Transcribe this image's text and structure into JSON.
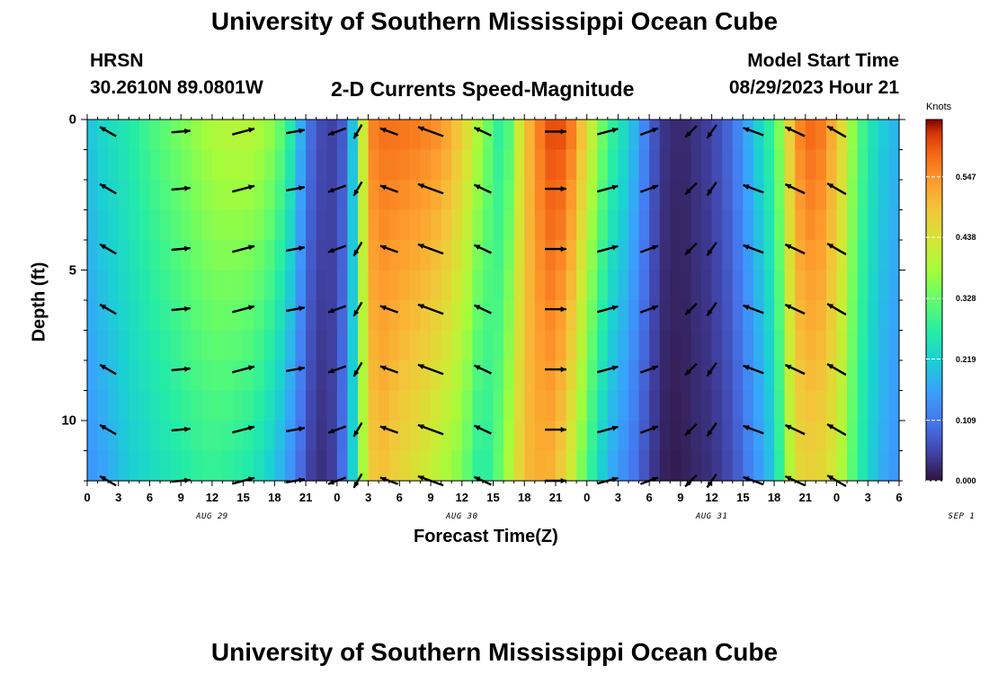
{
  "page": {
    "title": "University of Southern Mississippi Ocean Cube",
    "title_bottom": "University of Southern Mississippi Ocean Cube",
    "station": "HRSN",
    "coords": "30.2610N  89.0801W",
    "plot_title": "2-D Currents Speed-Magnitude",
    "model_start_label": "Model Start Time",
    "model_start_value": "08/29/2023 Hour 21"
  },
  "chart_data": {
    "type": "heatmap",
    "title": "2-D Currents Speed-Magnitude",
    "xlabel": "Forecast Time(Z)",
    "ylabel": "Depth (ft)",
    "x_tick_labels": [
      "0",
      "3",
      "6",
      "9",
      "12",
      "15",
      "18",
      "21",
      "0",
      "3",
      "6",
      "9",
      "12",
      "15",
      "18",
      "21",
      "0",
      "3",
      "6",
      "9",
      "12",
      "15",
      "18",
      "21",
      "0",
      "3",
      "6"
    ],
    "day_labels": [
      {
        "label": "AUG 29",
        "hour": 12
      },
      {
        "label": "AUG 30",
        "hour": 36
      },
      {
        "label": "AUG 31",
        "hour": 60
      },
      {
        "label": "SEP 1",
        "hour": 84
      }
    ],
    "xlim": [
      0,
      78
    ],
    "ylim": [
      0,
      12
    ],
    "y_ticks": [
      0,
      5,
      10
    ],
    "colorbar": {
      "title": "Knots",
      "range": [
        0,
        0.65
      ],
      "ticks": [
        "0.000",
        "0.109",
        "0.219",
        "0.328",
        "0.438",
        "0.547"
      ],
      "tick_values": [
        0,
        0.109,
        0.219,
        0.328,
        0.438,
        0.547
      ]
    },
    "hours": [
      0,
      2,
      4,
      6,
      8,
      10,
      12,
      14,
      16,
      18,
      20,
      21,
      22,
      23,
      24,
      25,
      26,
      27,
      28,
      29,
      30,
      32,
      34,
      36,
      38,
      40,
      42,
      44,
      45,
      46,
      47,
      48,
      50,
      52,
      54,
      55,
      56,
      57,
      58,
      60,
      62,
      64,
      66,
      67,
      68,
      70,
      72,
      74,
      76,
      78
    ],
    "speed_surface": [
      0.2,
      0.24,
      0.26,
      0.3,
      0.33,
      0.36,
      0.39,
      0.4,
      0.4,
      0.36,
      0.24,
      0.12,
      0.07,
      0.05,
      0.05,
      0.1,
      0.3,
      0.55,
      0.58,
      0.58,
      0.58,
      0.57,
      0.55,
      0.48,
      0.36,
      0.25,
      0.48,
      0.6,
      0.62,
      0.6,
      0.55,
      0.45,
      0.3,
      0.22,
      0.1,
      0.04,
      0.03,
      0.02,
      0.03,
      0.05,
      0.1,
      0.2,
      0.3,
      0.4,
      0.55,
      0.6,
      0.5,
      0.32,
      0.22,
      0.18
    ],
    "speed_bottom": [
      0.14,
      0.17,
      0.21,
      0.23,
      0.25,
      0.27,
      0.28,
      0.27,
      0.25,
      0.2,
      0.12,
      0.06,
      0.03,
      0.03,
      0.06,
      0.14,
      0.3,
      0.46,
      0.5,
      0.48,
      0.46,
      0.43,
      0.39,
      0.34,
      0.25,
      0.35,
      0.5,
      0.52,
      0.5,
      0.45,
      0.38,
      0.3,
      0.18,
      0.12,
      0.05,
      0.02,
      0.01,
      0.01,
      0.02,
      0.03,
      0.06,
      0.13,
      0.21,
      0.33,
      0.45,
      0.47,
      0.42,
      0.28,
      0.18,
      0.14
    ],
    "vector_rows_depth_ft": [
      0.4,
      2.3,
      4.3,
      6.3,
      8.3,
      10.3,
      12.0
    ],
    "vectors": [
      {
        "hour": 2,
        "dir_deg": 150,
        "mag": 0.7
      },
      {
        "hour": 9,
        "dir_deg": 5,
        "mag": 0.7
      },
      {
        "hour": 15,
        "dir_deg": 15,
        "mag": 0.85
      },
      {
        "hour": 20,
        "dir_deg": 10,
        "mag": 0.7
      },
      {
        "hour": 24,
        "dir_deg": 200,
        "mag": 0.7
      },
      {
        "hour": 26,
        "dir_deg": 240,
        "mag": 0.6
      },
      {
        "hour": 29,
        "dir_deg": 160,
        "mag": 0.7
      },
      {
        "hour": 33,
        "dir_deg": 160,
        "mag": 1.0
      },
      {
        "hour": 38,
        "dir_deg": 155,
        "mag": 0.7
      },
      {
        "hour": 45,
        "dir_deg": 0,
        "mag": 0.8
      },
      {
        "hour": 50,
        "dir_deg": 15,
        "mag": 0.8
      },
      {
        "hour": 54,
        "dir_deg": 20,
        "mag": 0.7
      },
      {
        "hour": 58,
        "dir_deg": 225,
        "mag": 0.6
      },
      {
        "hour": 60,
        "dir_deg": 235,
        "mag": 0.6
      },
      {
        "hour": 64,
        "dir_deg": 160,
        "mag": 0.8
      },
      {
        "hour": 68,
        "dir_deg": 155,
        "mag": 0.8
      },
      {
        "hour": 72,
        "dir_deg": 150,
        "mag": 0.8
      }
    ],
    "grid": false
  }
}
